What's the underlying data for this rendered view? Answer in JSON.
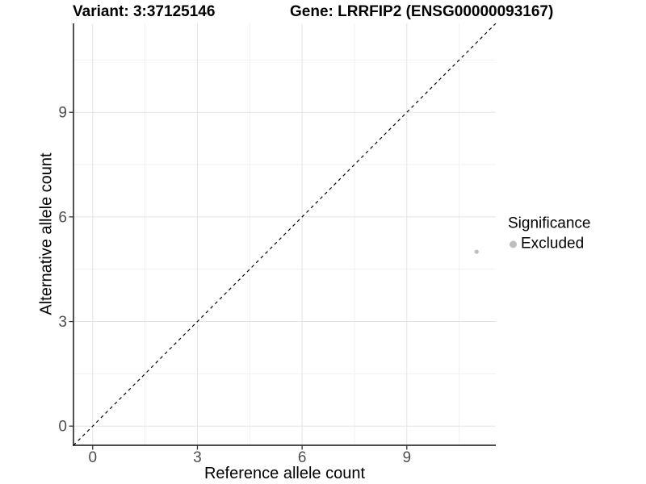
{
  "chart_data": {
    "type": "scatter",
    "variant_title": "Variant: 3:37125146",
    "gene_title": "Gene: LRRFIP2 (ENSG00000093167)",
    "xlabel": "Reference allele count",
    "ylabel": "Alternative allele count",
    "xlim": [
      -0.55,
      11.55
    ],
    "ylim": [
      -0.55,
      11.55
    ],
    "x_major_ticks": [
      0,
      3,
      6,
      9
    ],
    "y_major_ticks": [
      0,
      3,
      6,
      9
    ],
    "x_minor_gridlines": [
      1.5,
      4.5,
      7.5,
      10.5
    ],
    "y_minor_gridlines": [
      1.5,
      4.5,
      7.5,
      10.5
    ],
    "grid": "major and minor gridlines on white panel",
    "identity_line": {
      "style": "dashed",
      "equation": "y = x",
      "color": "#000000"
    },
    "series": [
      {
        "name": "Excluded",
        "color": "#bebebe",
        "points": [
          {
            "x": 11,
            "y": 5
          }
        ]
      }
    ],
    "legend": {
      "title": "Significance",
      "position": "right",
      "items": [
        {
          "label": "Excluded",
          "color": "#bebebe"
        }
      ]
    }
  },
  "colors": {
    "background": "#ffffff",
    "axis_line": "#333333",
    "tick_mark": "#333333",
    "tick_label": "#4d4d4d",
    "grid_major": "#e3e3e3",
    "grid_minor": "#f1f1f1",
    "identity_line": "#000000",
    "point": "#bebebe",
    "title_text": "#000000"
  }
}
